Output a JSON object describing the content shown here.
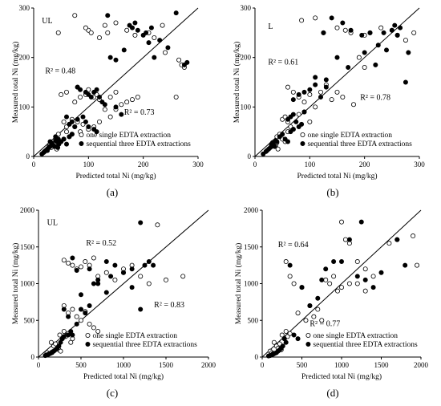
{
  "chart_data": [
    {
      "type": "scatter",
      "panel_label": "(a)",
      "corner_label": "UL",
      "xlabel": "Predicted total Ni (mg/kg)",
      "ylabel": "Measured total Ni (mg/kg)",
      "xlim": [
        0,
        300
      ],
      "ylim": [
        0,
        300
      ],
      "xticks": [
        0,
        100,
        200,
        300
      ],
      "yticks": [
        0,
        100,
        200,
        300
      ],
      "identity_line": true,
      "legend": [
        "one single EDTA extraction",
        "sequential three EDTA extractions"
      ],
      "annotations": [
        {
          "text": "R² = 0.48",
          "series": "one single EDTA extraction"
        },
        {
          "text": "R² = 0.73",
          "series": "sequential three EDTA extractions"
        }
      ],
      "series": [
        {
          "name": "one single EDTA extraction",
          "marker": "open-circle",
          "x": [
            75,
            100,
            95,
            105,
            120,
            130,
            135,
            150,
            170,
            185,
            210,
            220,
            235,
            240,
            265,
            270,
            45,
            50,
            60,
            75,
            80,
            85,
            95,
            100,
            110,
            115,
            120,
            130,
            140,
            150,
            160,
            170,
            180,
            190,
            55,
            60,
            65,
            70,
            75,
            80,
            85,
            90,
            100,
            110,
            120,
            40,
            45,
            50,
            55,
            60,
            65,
            70,
            25,
            28,
            30,
            32,
            35,
            38,
            40,
            42,
            260,
            275,
            150,
            140
          ],
          "y": [
            285,
            255,
            260,
            250,
            240,
            265,
            250,
            270,
            255,
            245,
            250,
            240,
            265,
            210,
            195,
            185,
            250,
            125,
            130,
            110,
            140,
            120,
            125,
            135,
            120,
            125,
            115,
            95,
            120,
            130,
            105,
            110,
            115,
            120,
            70,
            60,
            65,
            75,
            60,
            70,
            50,
            65,
            55,
            60,
            70,
            40,
            45,
            30,
            35,
            50,
            40,
            45,
            15,
            20,
            25,
            18,
            30,
            22,
            28,
            15,
            120,
            180,
            95,
            80
          ]
        },
        {
          "name": "sequential three EDTA extractions",
          "marker": "filled-circle",
          "x": [
            135,
            180,
            185,
            175,
            190,
            205,
            215,
            230,
            245,
            260,
            275,
            280,
            140,
            150,
            165,
            200,
            210,
            220,
            80,
            85,
            95,
            100,
            105,
            110,
            115,
            120,
            125,
            130,
            150,
            160,
            60,
            65,
            70,
            75,
            80,
            90,
            95,
            100,
            110,
            115,
            40,
            45,
            50,
            55,
            60,
            65,
            70,
            30,
            32,
            34,
            36,
            38,
            40,
            42,
            44,
            46,
            15,
            18,
            20,
            22,
            25,
            28,
            30,
            20,
            25
          ],
          "y": [
            285,
            260,
            270,
            265,
            255,
            250,
            260,
            235,
            220,
            290,
            185,
            190,
            200,
            195,
            215,
            245,
            230,
            200,
            140,
            135,
            130,
            125,
            120,
            130,
            135,
            120,
            110,
            105,
            100,
            85,
            80,
            65,
            70,
            60,
            75,
            80,
            70,
            60,
            55,
            50,
            40,
            35,
            30,
            35,
            25,
            40,
            45,
            30,
            28,
            25,
            22,
            20,
            32,
            30,
            18,
            25,
            5,
            8,
            10,
            12,
            15,
            18,
            20,
            10,
            12
          ]
        }
      ]
    },
    {
      "type": "scatter",
      "panel_label": "(b)",
      "corner_label": "L",
      "xlabel": "Predicted total Ni (mg/kg)",
      "ylabel": "Measured total Ni (mg/kg)",
      "xlim": [
        0,
        300
      ],
      "ylim": [
        0,
        300
      ],
      "xticks": [
        0,
        100,
        200,
        300
      ],
      "yticks": [
        0,
        100,
        200,
        300
      ],
      "identity_line": true,
      "legend": [
        "one single EDTA extraction",
        "sequential three EDTA extractions"
      ],
      "annotations": [
        {
          "text": "R² = 0.61",
          "series": "one single EDTA extraction"
        },
        {
          "text": "R² = 0.78",
          "series": "sequential three EDTA extractions"
        }
      ],
      "series": [
        {
          "name": "one single EDTA extraction",
          "marker": "open-circle",
          "x": [
            85,
            110,
            125,
            150,
            165,
            175,
            200,
            210,
            230,
            250,
            260,
            275,
            290,
            60,
            70,
            80,
            90,
            100,
            110,
            120,
            130,
            140,
            150,
            160,
            180,
            190,
            200,
            50,
            55,
            60,
            65,
            70,
            80,
            90,
            100,
            40,
            45,
            50,
            55,
            60,
            30,
            32,
            35,
            38,
            40,
            42
          ],
          "y": [
            275,
            280,
            250,
            260,
            255,
            250,
            245,
            250,
            260,
            255,
            245,
            235,
            250,
            140,
            130,
            120,
            110,
            125,
            100,
            130,
            145,
            115,
            130,
            120,
            105,
            200,
            180,
            75,
            80,
            70,
            60,
            55,
            85,
            90,
            70,
            40,
            45,
            35,
            30,
            50,
            20,
            25,
            30,
            22,
            28,
            15
          ],
          "note": "approximate"
        },
        {
          "name": "sequential three EDTA extractions",
          "marker": "filled-circle",
          "x": [
            125,
            140,
            160,
            175,
            195,
            210,
            225,
            235,
            255,
            260,
            275,
            280,
            110,
            130,
            150,
            170,
            200,
            220,
            240,
            250,
            265,
            70,
            80,
            90,
            100,
            110,
            120,
            130,
            60,
            65,
            70,
            75,
            80,
            85,
            90,
            45,
            50,
            55,
            60,
            65,
            70,
            30,
            32,
            34,
            36,
            38,
            40,
            15,
            20,
            22,
            25,
            28
          ],
          "y": [
            250,
            280,
            270,
            255,
            245,
            250,
            225,
            250,
            265,
            245,
            150,
            210,
            160,
            155,
            200,
            180,
            210,
            185,
            215,
            255,
            260,
            115,
            125,
            130,
            135,
            145,
            120,
            140,
            75,
            80,
            85,
            70,
            60,
            65,
            90,
            40,
            45,
            35,
            30,
            50,
            55,
            25,
            28,
            22,
            20,
            32,
            30,
            5,
            10,
            12,
            15,
            18
          ]
        }
      ]
    },
    {
      "type": "scatter",
      "panel_label": "(c)",
      "corner_label": "UL",
      "xlabel": "Predicted total Ni (mg/kg)",
      "ylabel": "Measured total Ni (mg/kg)",
      "xlim": [
        0,
        2000
      ],
      "ylim": [
        0,
        2000
      ],
      "xticks": [
        0,
        500,
        1000,
        1500,
        2000
      ],
      "yticks": [
        0,
        500,
        1000,
        1500,
        2000
      ],
      "identity_line": true,
      "legend": [
        "one single EDTA extraction",
        "sequential three EDTA extractions"
      ],
      "annotations": [
        {
          "text": "R² = 0.52",
          "series": "one single EDTA extraction"
        },
        {
          "text": "R² = 0.83",
          "series": "sequential three EDTA extractions"
        }
      ],
      "series": [
        {
          "name": "one single EDTA extraction",
          "marker": "open-circle",
          "x": [
            300,
            350,
            400,
            450,
            500,
            550,
            600,
            650,
            700,
            800,
            900,
            1000,
            1100,
            1200,
            1300,
            1400,
            1500,
            1700,
            300,
            350,
            400,
            450,
            500,
            550,
            600,
            650,
            700,
            250,
            280,
            300,
            320,
            350,
            380,
            400,
            150,
            180,
            200,
            220,
            240,
            260,
            100,
            120,
            140,
            160
          ],
          "y": [
            1320,
            1280,
            1250,
            1200,
            1230,
            1300,
            1250,
            1350,
            1100,
            1150,
            1050,
            1200,
            1250,
            1100,
            1000,
            1800,
            1050,
            1100,
            700,
            600,
            650,
            550,
            500,
            620,
            450,
            400,
            350,
            300,
            250,
            350,
            280,
            320,
            200,
            250,
            200,
            150,
            180,
            120,
            100,
            80,
            60,
            40,
            50,
            70
          ],
          "note": "approximate"
        },
        {
          "name": "sequential three EDTA extractions",
          "marker": "filled-circle",
          "x": [
            1200,
            1250,
            1300,
            1100,
            1000,
            900,
            850,
            800,
            700,
            650,
            600,
            500,
            450,
            400,
            350,
            300,
            1200,
            1350,
            1100,
            1000,
            800,
            700,
            600,
            550,
            500,
            450,
            400,
            380,
            350,
            300,
            280,
            260,
            240,
            220,
            200,
            180,
            160,
            140,
            120,
            100,
            80
          ],
          "y": [
            1830,
            1250,
            1300,
            1200,
            1150,
            1250,
            1100,
            1300,
            1050,
            1000,
            1200,
            850,
            1180,
            1350,
            550,
            650,
            650,
            1250,
            950,
            1150,
            880,
            1000,
            700,
            600,
            650,
            450,
            300,
            350,
            300,
            280,
            250,
            200,
            150,
            120,
            100,
            80,
            60,
            50,
            40,
            30,
            20
          ]
        }
      ]
    },
    {
      "type": "scatter",
      "panel_label": "(d)",
      "corner_label": "",
      "xlabel": "Predicted total Ni (mg/kg)",
      "ylabel": "Measured total Ni (mg/kg)",
      "xlim": [
        0,
        2000
      ],
      "ylim": [
        0,
        2000
      ],
      "xticks": [
        0,
        500,
        1000,
        1500,
        2000
      ],
      "yticks": [
        0,
        500,
        1000,
        1500,
        2000
      ],
      "identity_line": true,
      "legend": [
        "one single EDTA extraction",
        "sequential three EDTA extractions"
      ],
      "annotations": [
        {
          "text": "R² = 0.64",
          "series": "one single EDTA extraction"
        },
        {
          "text": "R² = 0.77",
          "series": "sequential three EDTA extractions"
        }
      ],
      "series": [
        {
          "name": "one single EDTA extraction",
          "marker": "open-circle",
          "x": [
            1000,
            1050,
            1100,
            1200,
            1300,
            1400,
            1600,
            1700,
            1900,
            1950,
            800,
            850,
            900,
            950,
            1000,
            1100,
            1200,
            1300,
            300,
            350,
            400,
            450,
            500,
            550,
            600,
            650,
            700,
            750,
            250,
            280,
            300,
            320,
            350,
            150,
            180,
            200,
            220,
            240,
            100,
            120,
            140
          ],
          "y": [
            1840,
            1600,
            1550,
            1300,
            1200,
            1100,
            1550,
            1600,
            1650,
            1250,
            1050,
            1000,
            1100,
            900,
            950,
            1000,
            1000,
            900,
            1300,
            1100,
            1000,
            600,
            950,
            500,
            700,
            550,
            650,
            500,
            300,
            250,
            350,
            280,
            320,
            200,
            150,
            120,
            180,
            100,
            80,
            60,
            50
          ],
          "note": "approximate"
        },
        {
          "name": "sequential three EDTA extractions",
          "marker": "filled-circle",
          "x": [
            1250,
            1100,
            1000,
            1200,
            1300,
            1400,
            1500,
            1700,
            1800,
            900,
            800,
            750,
            700,
            600,
            500,
            450,
            400,
            350,
            300,
            280,
            260,
            240,
            220,
            200,
            180,
            160,
            140,
            120,
            100,
            80
          ],
          "y": [
            1840,
            1600,
            1300,
            1100,
            1050,
            950,
            1150,
            1600,
            1250,
            1300,
            1200,
            1050,
            800,
            700,
            950,
            250,
            300,
            1250,
            200,
            250,
            150,
            120,
            100,
            80,
            60,
            50,
            40,
            30,
            20,
            15
          ]
        }
      ]
    }
  ]
}
